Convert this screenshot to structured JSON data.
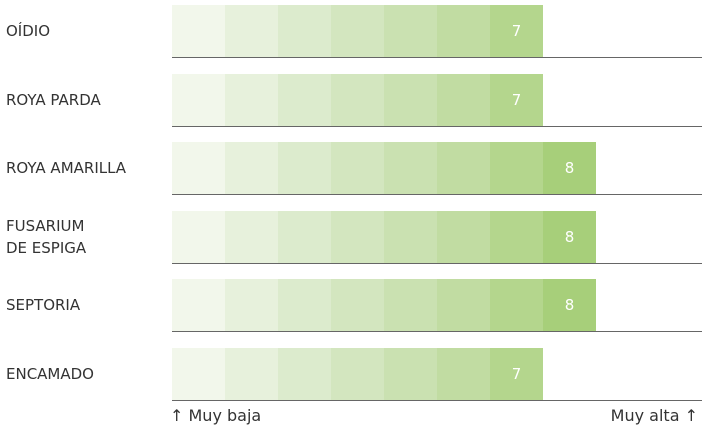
{
  "chart_data": {
    "type": "bar",
    "orientation": "horizontal",
    "categories": [
      "OÍDIO",
      "ROYA PARDA",
      "ROYA AMARILLA",
      "FUSARIUM\nDE ESPIGA",
      "SEPTORIA",
      "ENCAMADO"
    ],
    "values": [
      7,
      7,
      8,
      8,
      8,
      7
    ],
    "xlim": [
      0,
      10
    ],
    "colors": [
      "#f2f7eb",
      "#e7f1dc",
      "#dcebcd",
      "#d3e6bf",
      "#cae1b1",
      "#c1dca2",
      "#b4d68d",
      "#a7cf7a",
      "#9bc86a",
      "#8fc25b"
    ],
    "x_label_low": "↑ Muy baja",
    "x_label_high": "Muy alta ↑"
  }
}
